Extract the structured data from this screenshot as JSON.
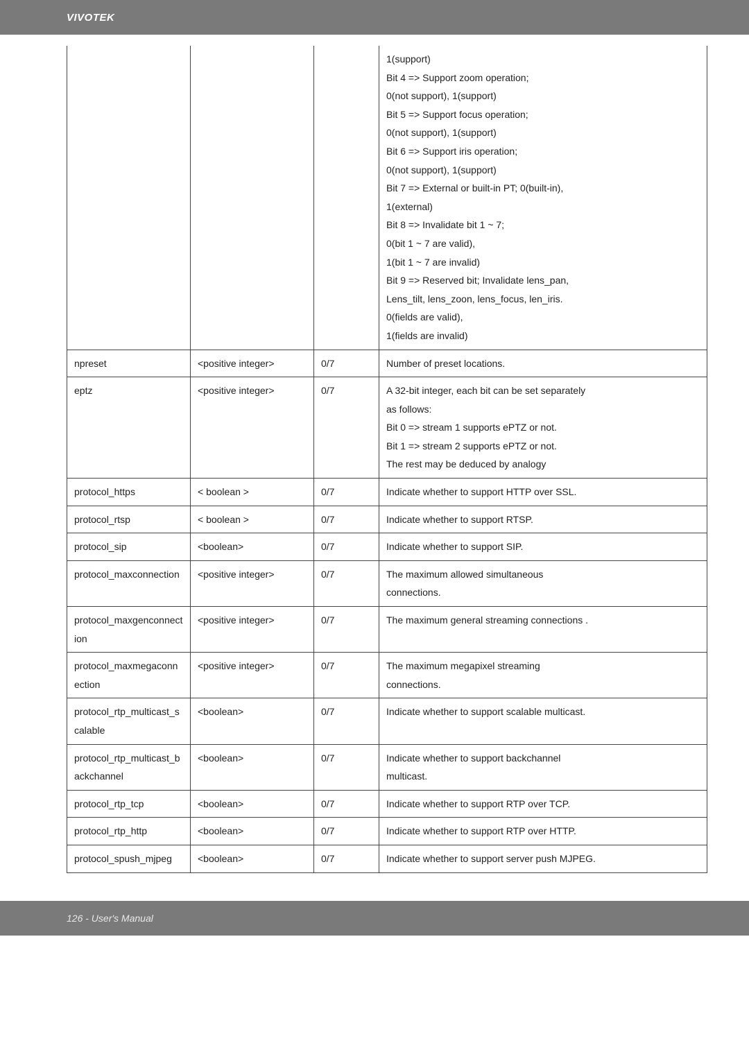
{
  "header": {
    "brand": "VIVOTEK"
  },
  "footer": {
    "text": "126 - User's Manual"
  },
  "table": {
    "rows": [
      {
        "param": "",
        "type": "",
        "sec": "",
        "desc": [
          "1(support)",
          "Bit 4 => Support zoom operation;",
          "0(not support), 1(support)",
          "Bit 5 => Support focus operation;",
          "0(not support), 1(support)",
          "Bit 6 => Support iris operation;",
          "0(not support), 1(support)",
          "Bit 7 => External or built-in PT; 0(built-in),",
          "1(external)",
          "Bit 8 => Invalidate bit 1 ~ 7;",
          "0(bit 1 ~ 7 are valid),",
          "1(bit 1 ~ 7 are invalid)",
          "Bit 9 => Reserved bit; Invalidate lens_pan,",
          "Lens_tilt, lens_zoon, lens_focus, len_iris.",
          "0(fields are valid),",
          "1(fields are invalid)"
        ],
        "notop": true
      },
      {
        "param": "npreset",
        "type": "<positive integer>",
        "sec": "0/7",
        "desc": [
          "Number of preset locations."
        ]
      },
      {
        "param": "eptz",
        "type": "<positive integer>",
        "sec": "0/7",
        "desc": [
          "A 32-bit integer, each bit can be set separately",
          "as follows:",
          "Bit 0 => stream 1 supports ePTZ or not.",
          "Bit 1 => stream 2 supports ePTZ or not.",
          "The rest may be deduced by analogy"
        ]
      },
      {
        "param": "protocol_https",
        "type": "< boolean >",
        "sec": "0/7",
        "desc": [
          "Indicate whether to support HTTP over SSL."
        ]
      },
      {
        "param": "protocol_rtsp",
        "type": "< boolean >",
        "sec": "0/7",
        "desc": [
          "Indicate whether to support RTSP."
        ]
      },
      {
        "param": "protocol_sip",
        "type": "<boolean>",
        "sec": "0/7",
        "desc": [
          "Indicate whether to support SIP."
        ]
      },
      {
        "param": "protocol_maxconnection",
        "type": "<positive integer>",
        "sec": "0/7",
        "desc": [
          "The maximum allowed simultaneous",
          "connections."
        ]
      },
      {
        "param": "protocol_maxgenconnection",
        "type": "<positive integer>",
        "sec": "0/7",
        "desc": [
          "The maximum general streaming connections ."
        ]
      },
      {
        "param": "protocol_maxmegaconnection",
        "type": "<positive integer>",
        "sec": "0/7",
        "desc": [
          "The maximum megapixel streaming",
          "connections."
        ]
      },
      {
        "param": "protocol_rtp_multicast_scalable",
        "type": "<boolean>",
        "sec": "0/7",
        "desc": [
          "Indicate whether to support scalable multicast."
        ]
      },
      {
        "param": "protocol_rtp_multicast_backchannel",
        "type": "<boolean>",
        "sec": "0/7",
        "desc": [
          "Indicate whether to support backchannel",
          "multicast."
        ]
      },
      {
        "param": "protocol_rtp_tcp",
        "type": "<boolean>",
        "sec": "0/7",
        "desc": [
          "Indicate whether to support RTP over TCP."
        ]
      },
      {
        "param": "protocol_rtp_http",
        "type": "<boolean>",
        "sec": "0/7",
        "desc": [
          "Indicate whether to support RTP over HTTP."
        ]
      },
      {
        "param": "protocol_spush_mjpeg",
        "type": "<boolean>",
        "sec": "0/7",
        "desc": [
          "Indicate whether to support server push MJPEG."
        ]
      }
    ]
  }
}
